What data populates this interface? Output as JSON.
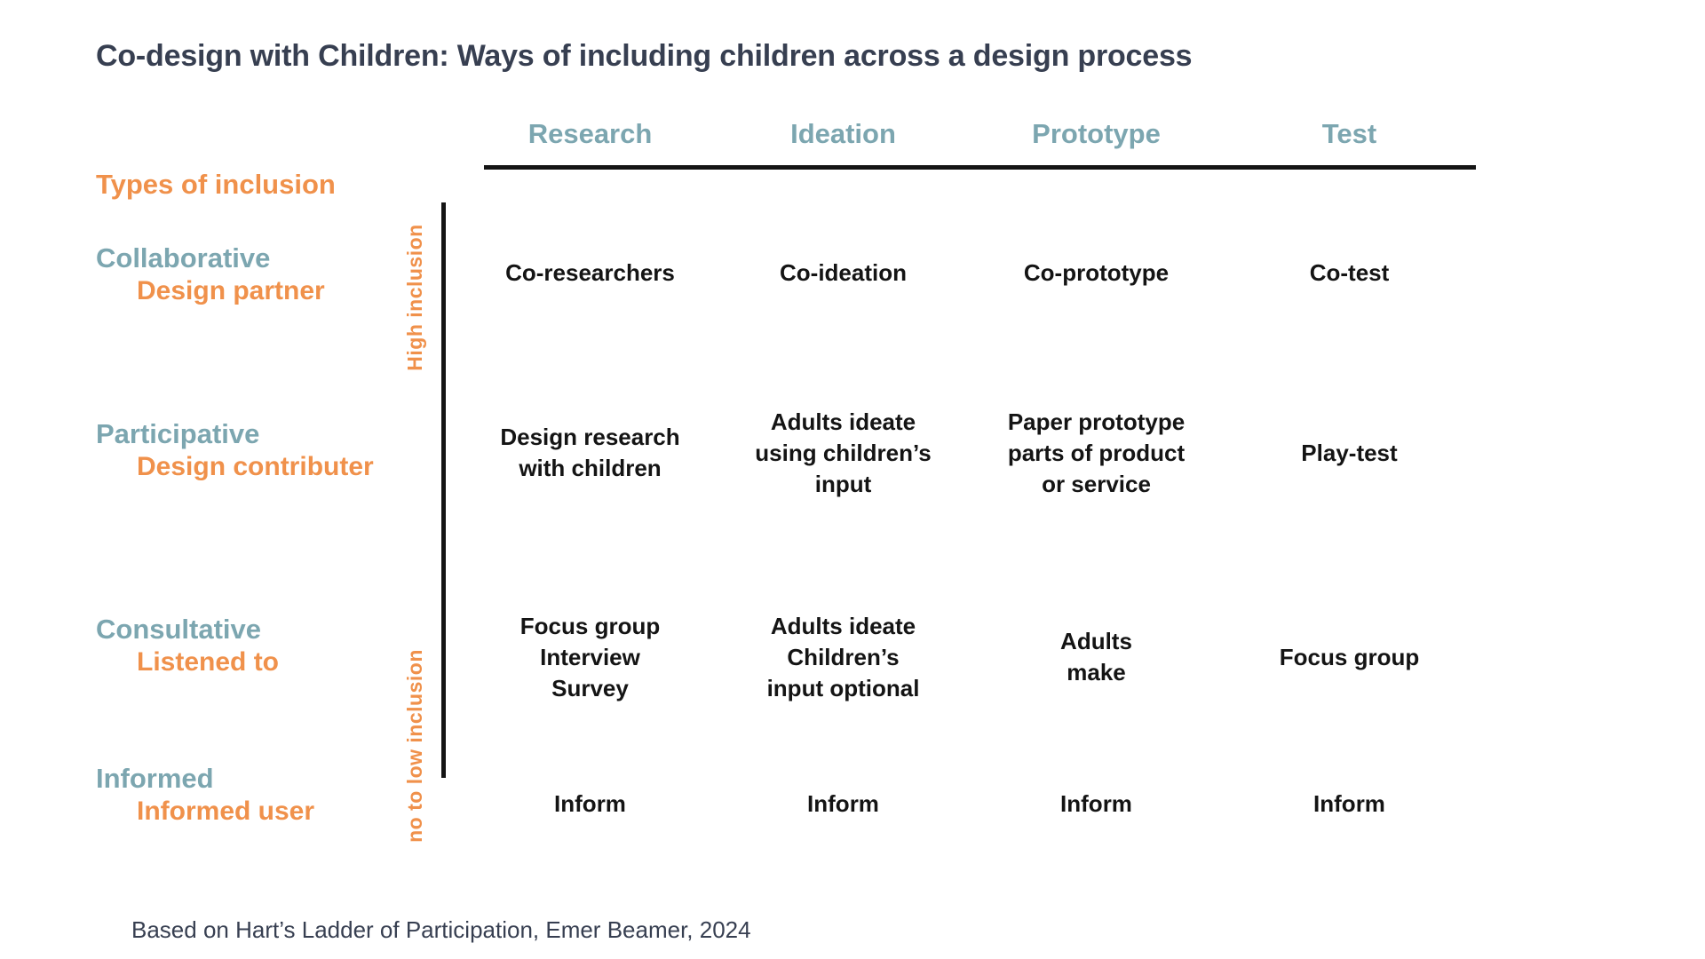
{
  "title": "Co-design with Children: Ways of including children across a design process",
  "footer": "Based on Hart’s Ladder of Participation, Emer Beamer, 2024",
  "colors": {
    "accent_orange": "#F0914B",
    "accent_teal": "#7CA6B0",
    "heading_dark": "#373F51",
    "cell_text": "#141414",
    "line_black": "#141414",
    "background": "#FFFFFF"
  },
  "table": {
    "row_axis_label": "Types of inclusion",
    "column_headers": [
      "Research",
      "Ideation",
      "Prototype",
      "Test"
    ],
    "inclusion_scale": {
      "high_label": "High inclusion",
      "low_label": "no to low inclusion"
    },
    "rows": [
      {
        "level": "Collaborative",
        "role": "Design partner",
        "cells": [
          "Co-researchers",
          "Co-ideation",
          "Co-prototype",
          "Co-test"
        ]
      },
      {
        "level": "Participative",
        "role": "Design contributer",
        "cells": [
          "Design research\nwith children",
          "Adults ideate\nusing children’s\ninput",
          "Paper prototype\nparts of product\nor service",
          "Play-test"
        ]
      },
      {
        "level": "Consultative",
        "role": "Listened to",
        "cells": [
          "Focus group\nInterview\nSurvey",
          "Adults ideate\nChildren’s\ninput optional",
          "Adults\nmake",
          "Focus group"
        ]
      },
      {
        "level": "Informed",
        "role": "Informed user",
        "cells": [
          "Inform",
          "Inform",
          "Inform",
          "Inform"
        ]
      }
    ]
  }
}
